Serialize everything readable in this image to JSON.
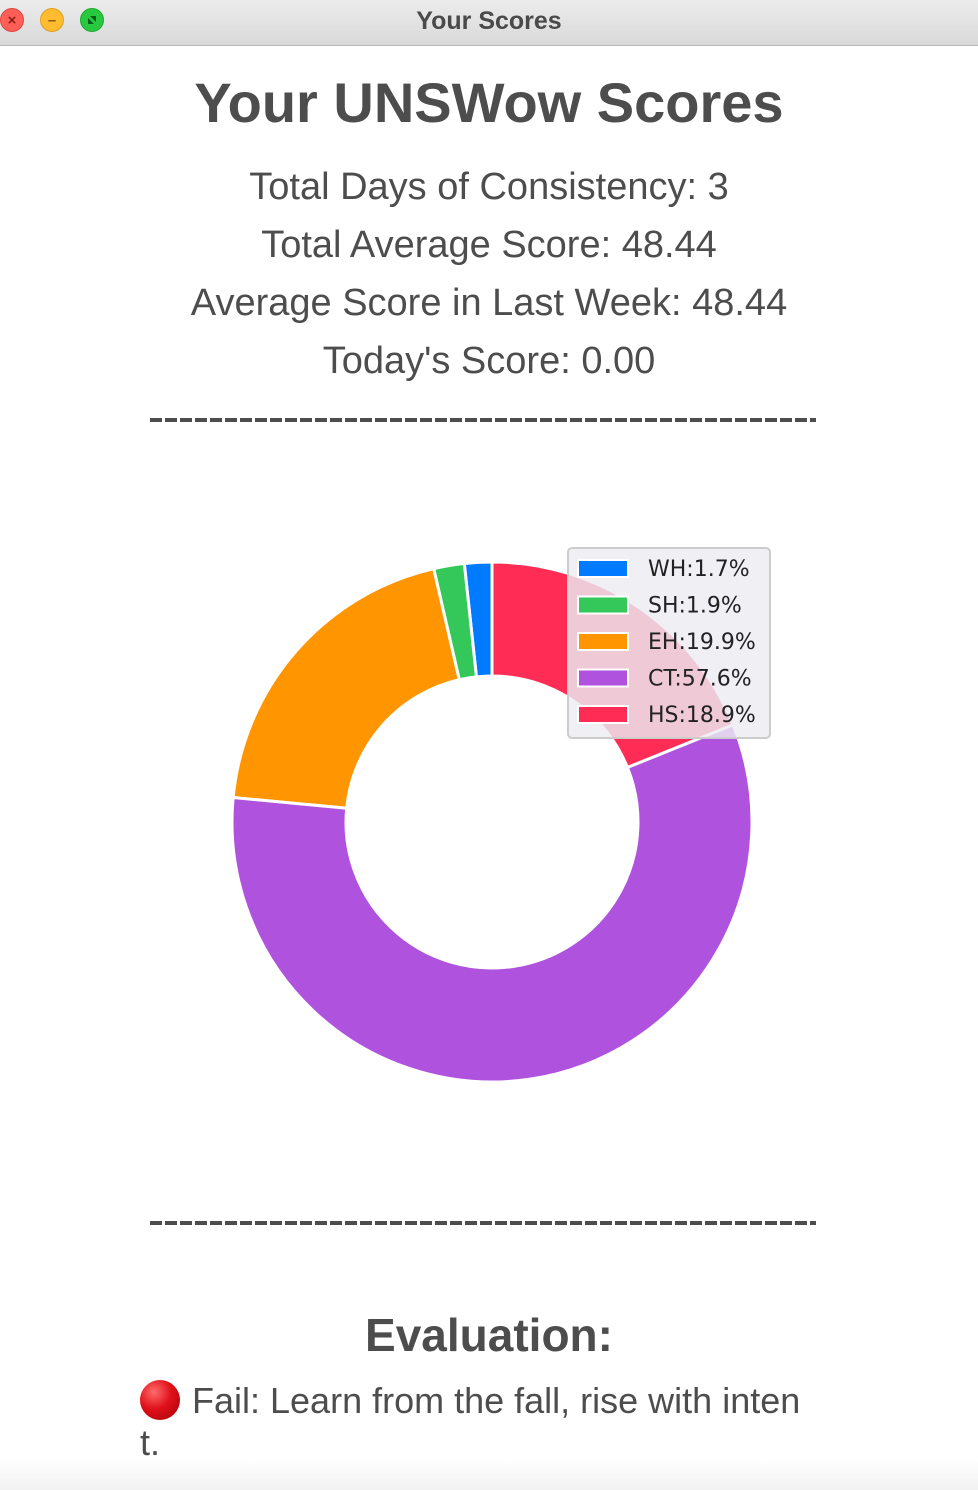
{
  "window": {
    "title": "Your Scores",
    "icons": [
      "close-icon",
      "minimize-icon",
      "zoom-icon"
    ]
  },
  "main": {
    "heading": "Your UNSWow Scores",
    "stats": {
      "consistency": "Total Days of Consistency: 3",
      "total_average": "Total Average Score: 48.44",
      "week_average": "Average Score in Last Week: 48.44",
      "today": "Today's Score: 0.00"
    }
  },
  "evaluation": {
    "title": "Evaluation:",
    "icon": "red-circle-icon",
    "text": "Fail: Learn from the fall, rise with intent."
  },
  "colors": {
    "WH": "#007aff",
    "SH": "#34c759",
    "EH": "#ff9500",
    "CT": "#af52de",
    "HS": "#ff2d55"
  },
  "chart_data": {
    "type": "pie",
    "style": "donut",
    "categories": [
      "WH",
      "SH",
      "EH",
      "CT",
      "HS"
    ],
    "values": [
      1.7,
      1.9,
      19.9,
      57.6,
      18.9
    ],
    "legend_labels": [
      "WH:1.7%",
      "SH:1.9%",
      "EH:19.9%",
      "CT:57.6%",
      "HS:18.9%"
    ],
    "legend": "top-right",
    "counterclockwise": true,
    "start_angle_deg": 90
  }
}
